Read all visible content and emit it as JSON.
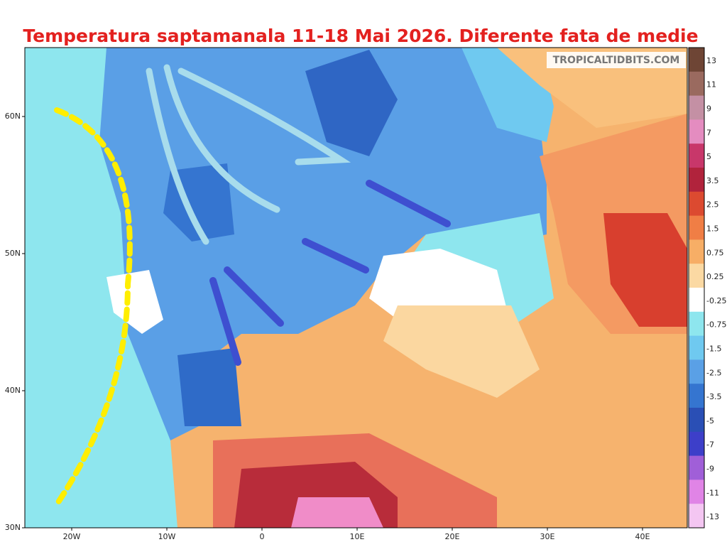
{
  "header": {
    "title": "Temperatura saptamanala 11-18 Mai 2026. Diferente fata de medie",
    "credit": "TROPICALTIDBITS.COM"
  },
  "map": {
    "lat_labels": [
      "60N",
      "50N",
      "40N",
      "30N"
    ],
    "lon_labels": [
      "20W",
      "10W",
      "0",
      "10E",
      "20E",
      "30E",
      "40E"
    ]
  },
  "colorbar": {
    "labels": [
      "13",
      "11",
      "9",
      "7",
      "5",
      "3.5",
      "2.5",
      "1.5",
      "0.75",
      "0.25",
      "-0.25",
      "-0.75",
      "-1.5",
      "-2.5",
      "-3.5",
      "-5",
      "-7",
      "-9",
      "-11",
      "-13"
    ]
  }
}
